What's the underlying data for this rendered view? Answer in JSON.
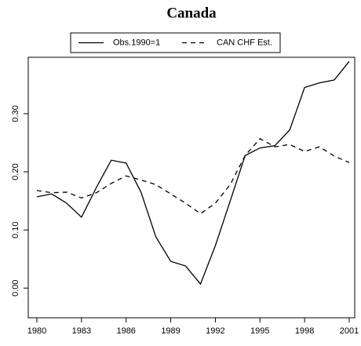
{
  "chart_data": {
    "type": "line",
    "title": "Canada",
    "x": [
      1980,
      1981,
      1982,
      1983,
      1984,
      1985,
      1986,
      1987,
      1988,
      1989,
      1990,
      1991,
      1992,
      1993,
      1994,
      1995,
      1996,
      1997,
      1998,
      1999,
      2000,
      2001
    ],
    "series": [
      {
        "name": "Obs.1990=1",
        "color": "#000000",
        "dash": false,
        "values": [
          0.157,
          0.162,
          0.146,
          0.122,
          0.173,
          0.22,
          0.215,
          0.165,
          0.088,
          0.046,
          0.038,
          0.007,
          0.073,
          0.15,
          0.228,
          0.241,
          0.245,
          0.272,
          0.345,
          0.353,
          0.358,
          0.39
        ]
      },
      {
        "name": "CAN CHF Est.",
        "color": "#000000",
        "dash": true,
        "values": [
          0.168,
          0.164,
          0.165,
          0.155,
          0.164,
          0.18,
          0.193,
          0.186,
          0.178,
          0.162,
          0.146,
          0.128,
          0.146,
          0.178,
          0.228,
          0.257,
          0.243,
          0.247,
          0.235,
          0.243,
          0.227,
          0.216
        ]
      }
    ],
    "xlim": [
      1979.42,
      2001.37
    ],
    "xticks": [
      1980,
      1983,
      1986,
      1989,
      1992,
      1995,
      1998,
      2001
    ],
    "ylim": [
      -0.051,
      0.397
    ],
    "yticks": [
      {
        "value": 0,
        "label": "0.00"
      },
      {
        "value": 0.1,
        "label": "0.10"
      },
      {
        "value": 0.2,
        "label": "0.20"
      },
      {
        "value": 0.3,
        "label": "0.30"
      }
    ],
    "legend": "top"
  }
}
